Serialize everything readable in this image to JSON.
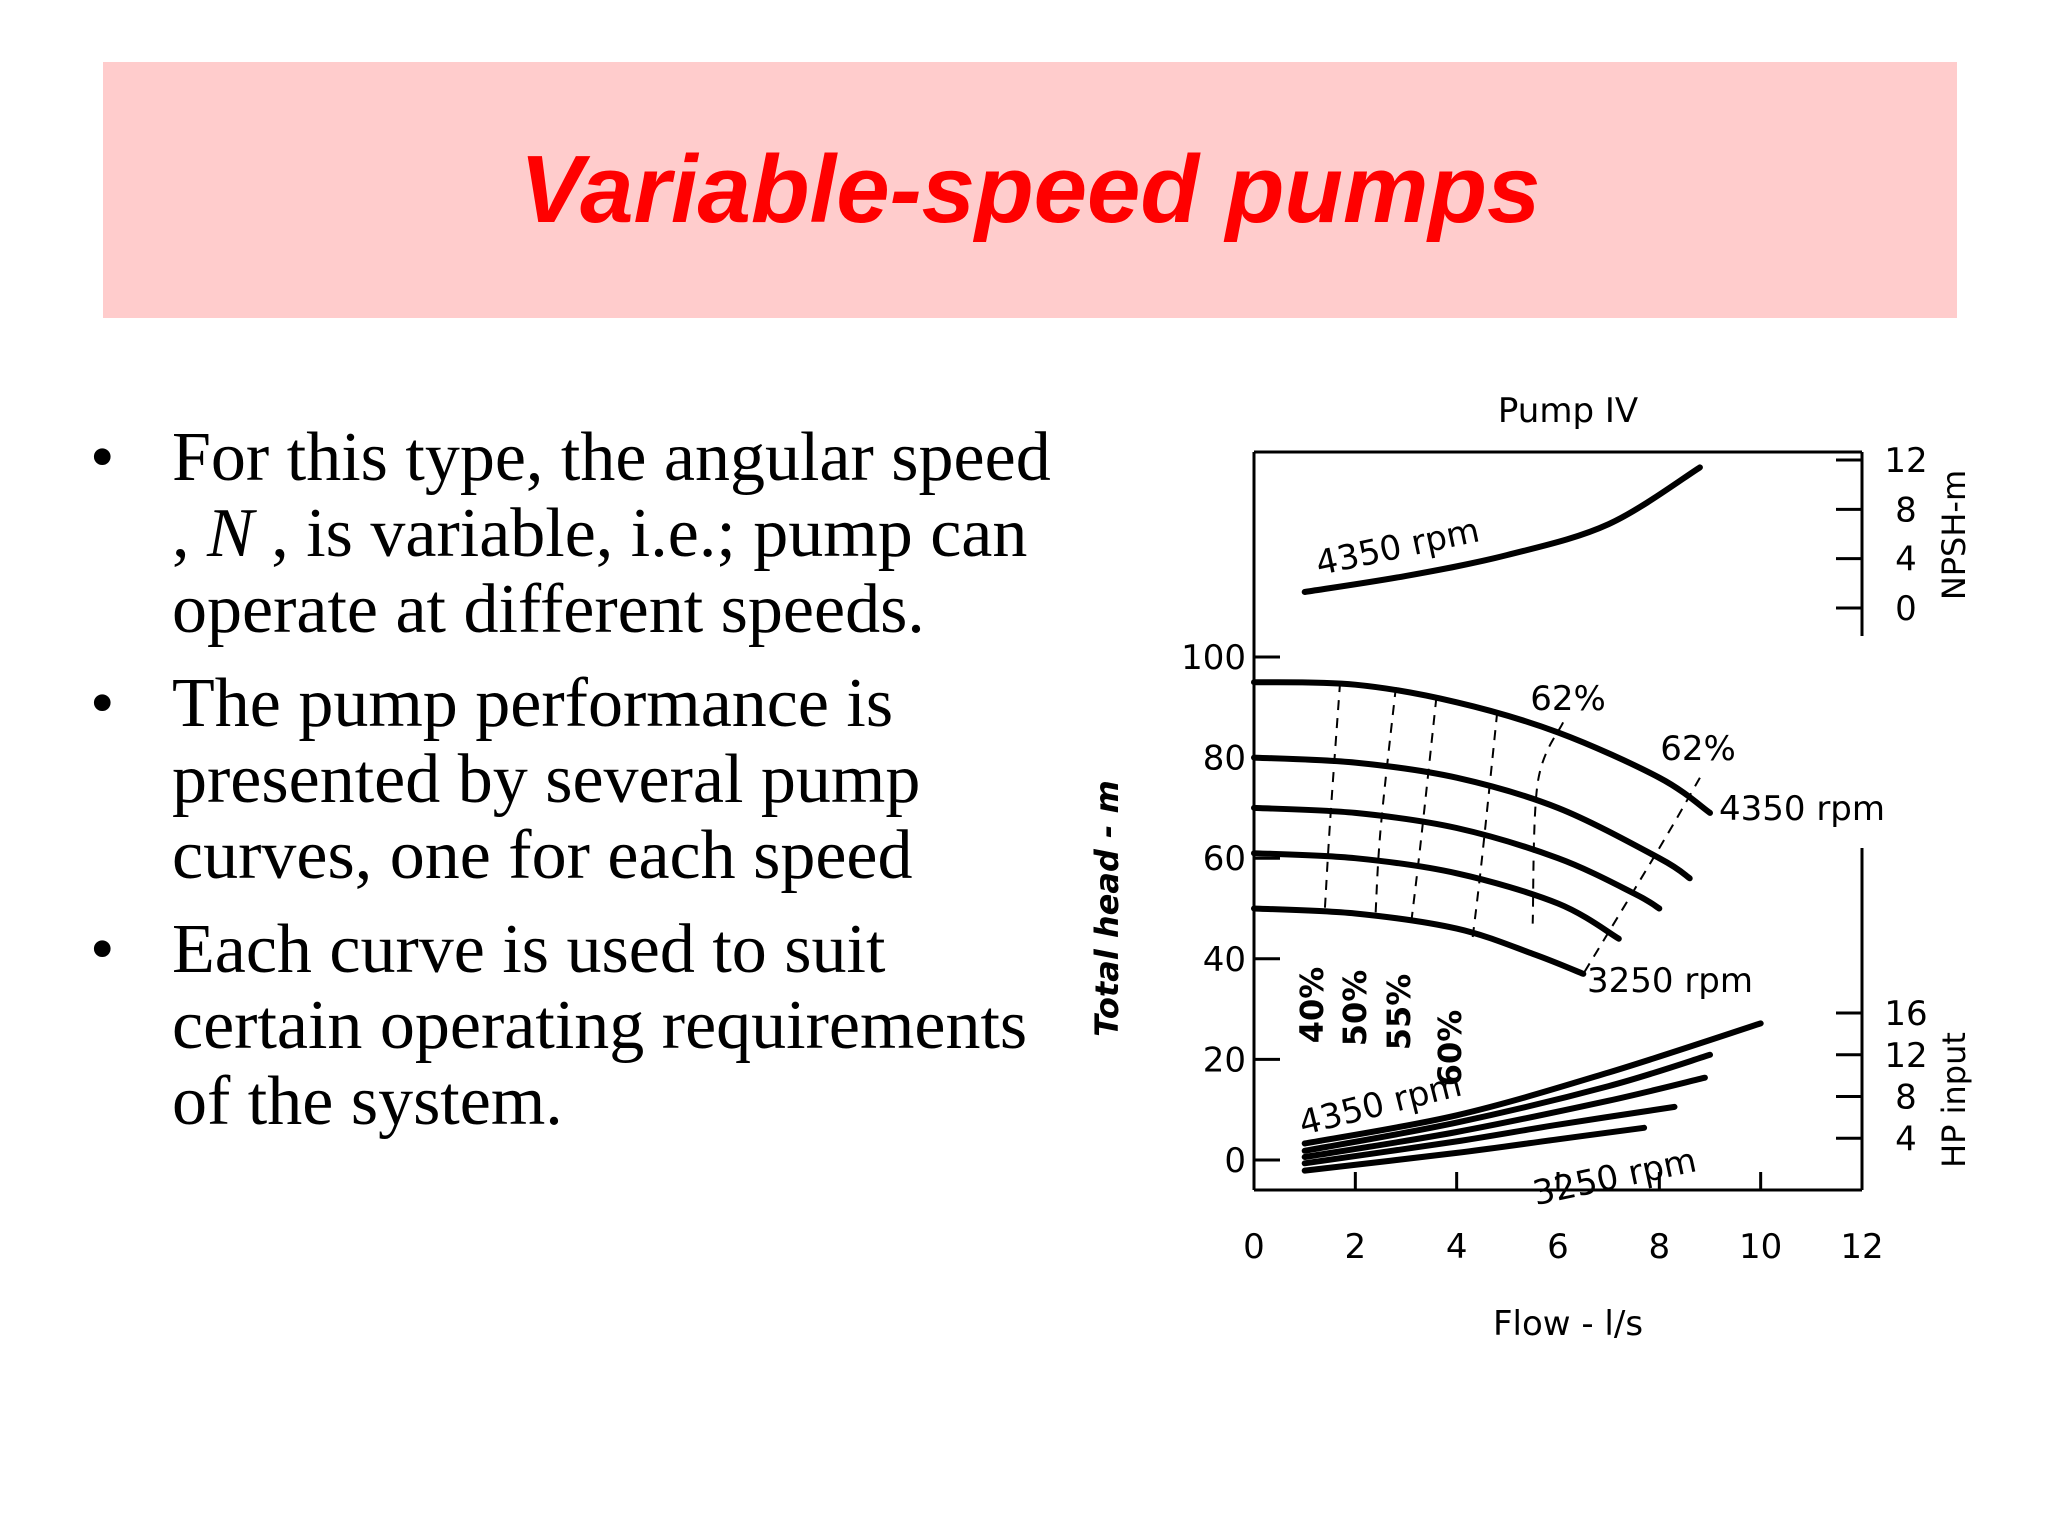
{
  "slide": {
    "title": "Variable-speed pumps",
    "bullets": [
      {
        "parts": [
          "For this type, the angular speed , ",
          "N",
          " , is variable, i.e.; pump can operate at different speeds."
        ]
      },
      {
        "text": "The pump performance is presented by several pump curves, one for each speed"
      },
      {
        "text": " Each curve is used to suit certain operating requirements of the system."
      }
    ]
  },
  "chart_data": {
    "type": "line",
    "title": "Pump IV",
    "xlabel": "Flow - l/s",
    "ylabel": "Total head - m",
    "ylabel_right_top": "NPSH-m",
    "ylabel_right_bottom": "HP input",
    "xlim": [
      0,
      12
    ],
    "x_ticks": [
      "0",
      "2",
      "4",
      "6",
      "8",
      "10",
      "12"
    ],
    "head_ylim": [
      0,
      100
    ],
    "head_ticks": [
      "100",
      "80",
      "60",
      "40",
      "20",
      "0"
    ],
    "npsh_ticks": [
      "12",
      "8",
      "4",
      "0"
    ],
    "hp_ticks": [
      "16",
      "12",
      "8",
      "4"
    ],
    "npsh_curve": {
      "label": "4350 rpm",
      "points": [
        [
          1.0,
          1.3
        ],
        [
          3.0,
          2.6
        ],
        [
          5.0,
          4.3
        ],
        [
          7.0,
          6.8
        ],
        [
          8.8,
          11.4
        ]
      ]
    },
    "head_curves": [
      {
        "label": "4350 rpm",
        "points": [
          [
            0,
            95
          ],
          [
            2,
            94.5
          ],
          [
            4,
            91
          ],
          [
            6,
            85
          ],
          [
            8,
            76
          ],
          [
            9,
            69
          ]
        ]
      },
      {
        "points": [
          [
            0,
            80
          ],
          [
            2,
            79
          ],
          [
            4,
            76
          ],
          [
            6,
            70
          ],
          [
            8,
            60
          ],
          [
            8.6,
            56
          ]
        ]
      },
      {
        "points": [
          [
            0,
            70
          ],
          [
            2,
            69
          ],
          [
            4,
            66
          ],
          [
            6,
            60
          ],
          [
            7.5,
            53
          ],
          [
            8,
            50
          ]
        ]
      },
      {
        "points": [
          [
            0,
            61
          ],
          [
            2,
            60
          ],
          [
            4,
            57
          ],
          [
            6,
            51
          ],
          [
            7.2,
            44
          ]
        ]
      },
      {
        "label": "3250 rpm",
        "points": [
          [
            0,
            50
          ],
          [
            2,
            49
          ],
          [
            4,
            46
          ],
          [
            5.5,
            41
          ],
          [
            6.5,
            37
          ]
        ]
      }
    ],
    "efficiency_lines": [
      {
        "label": "40%",
        "points": [
          [
            1.7,
            95
          ],
          [
            1.5,
            67
          ],
          [
            1.4,
            50
          ]
        ]
      },
      {
        "label": "50%",
        "points": [
          [
            2.8,
            94
          ],
          [
            2.5,
            66
          ],
          [
            2.4,
            49
          ]
        ]
      },
      {
        "label": "55%",
        "points": [
          [
            3.6,
            92
          ],
          [
            3.3,
            64
          ],
          [
            3.1,
            47
          ]
        ]
      },
      {
        "label": "60%",
        "points": [
          [
            4.8,
            89
          ],
          [
            4.5,
            60
          ],
          [
            4.3,
            43
          ]
        ]
      },
      {
        "label": "62%",
        "points": [
          [
            6.1,
            87
          ],
          [
            5.6,
            75
          ],
          [
            5.5,
            47
          ]
        ]
      },
      {
        "label": "62%",
        "points": [
          [
            8.8,
            76
          ],
          [
            8.0,
            62
          ],
          [
            6.5,
            37
          ]
        ]
      }
    ],
    "hp_curves": [
      {
        "label": "4350 rpm",
        "points": [
          [
            1.0,
            3.5
          ],
          [
            4,
            6.2
          ],
          [
            7,
            10.3
          ],
          [
            10,
            15.0
          ]
        ]
      },
      {
        "points": [
          [
            1.0,
            2.8
          ],
          [
            4,
            5.5
          ],
          [
            7,
            9.0
          ],
          [
            9,
            12.0
          ]
        ]
      },
      {
        "points": [
          [
            1.0,
            2.2
          ],
          [
            4,
            4.6
          ],
          [
            7,
            7.6
          ],
          [
            8.9,
            9.8
          ]
        ]
      },
      {
        "points": [
          [
            1.0,
            1.6
          ],
          [
            4,
            3.7
          ],
          [
            6,
            5.3
          ],
          [
            8.3,
            7.0
          ]
        ]
      },
      {
        "label": "3250 rpm",
        "points": [
          [
            1.0,
            0.9
          ],
          [
            4,
            2.6
          ],
          [
            6,
            3.9
          ],
          [
            7.7,
            5.0
          ]
        ]
      }
    ],
    "annotations": [
      "62%",
      "62%",
      "4350 rpm",
      "3250 rpm",
      "4350 rpm",
      "3250 rpm",
      "4350 rpm"
    ]
  }
}
